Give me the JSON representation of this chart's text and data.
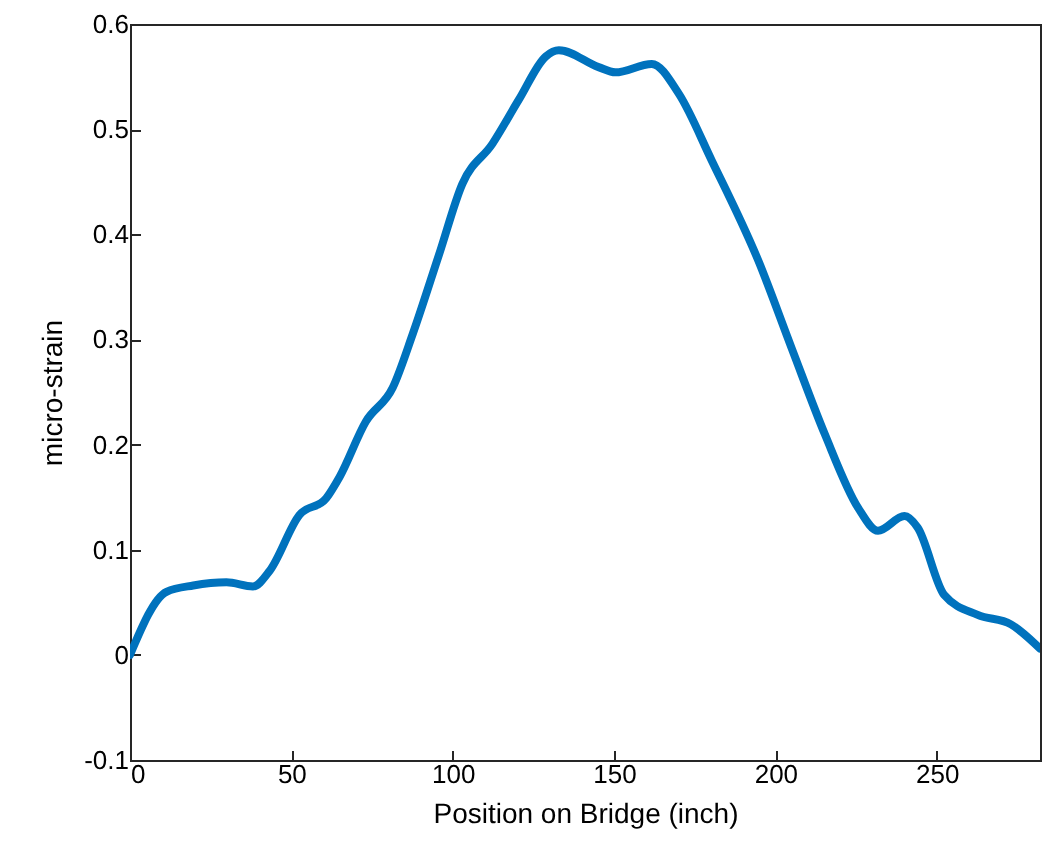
{
  "chart_data": {
    "type": "line",
    "xlabel": "Position on Bridge (inch)",
    "ylabel": "micro-strain",
    "x": [
      0,
      11.3,
      19.6,
      29.9,
      38.1,
      43.3,
      52.5,
      60.8,
      64.9,
      73.1,
      81.4,
      87.6,
      95.8,
      103,
      112.3,
      120.5,
      128.8,
      132.9,
      145.2,
      150.4,
      161.7,
      170,
      180.3,
      194.7,
      205,
      215.3,
      225.6,
      231.8,
      240,
      244.1,
      252.3,
      262.7,
      273,
      282
    ],
    "series": [
      {
        "color": "#0072bd",
        "values": [
          0,
          0.06,
          0.066,
          0.069,
          0.065,
          0.08,
          0.133,
          0.149,
          0.169,
          0.222,
          0.254,
          0.305,
          0.381,
          0.448,
          0.486,
          0.528,
          0.569,
          0.575,
          0.559,
          0.554,
          0.562,
          0.534,
          0.47,
          0.375,
          0.292,
          0.21,
          0.14,
          0.118,
          0.132,
          0.121,
          0.057,
          0.038,
          0.029,
          0.006
        ]
      }
    ],
    "xlim": [
      0,
      282
    ],
    "xticks": [
      0,
      50,
      100,
      150,
      200,
      250
    ],
    "ylim": [
      -0.1,
      0.6
    ],
    "yticks": [
      -0.1,
      0,
      0.1,
      0.2,
      0.3,
      0.4,
      0.5,
      0.6
    ],
    "line_style": "solid"
  }
}
